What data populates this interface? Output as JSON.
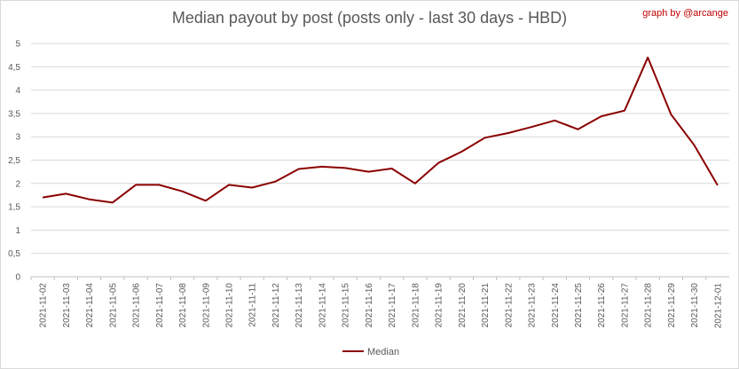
{
  "credit": "graph by @arcange",
  "chart_data": {
    "type": "line",
    "title": "Median payout by post (posts only - last 30 days - HBD)",
    "x": [
      "2021-11-02",
      "2021-11-03",
      "2021-11-04",
      "2021-11-05",
      "2021-11-06",
      "2021-11-07",
      "2021-11-08",
      "2021-11-09",
      "2021-11-10",
      "2021-11-11",
      "2021-11-12",
      "2021-11-13",
      "2021-11-14",
      "2021-11-15",
      "2021-11-16",
      "2021-11-17",
      "2021-11-18",
      "2021-11-19",
      "2021-11-20",
      "2021-11-21",
      "2021-11-22",
      "2021-11-23",
      "2021-11-24",
      "2021-11-25",
      "2021-11-26",
      "2021-11-27",
      "2021-11-28",
      "2021-11-29",
      "2021-11-30",
      "2021-12-01"
    ],
    "series": [
      {
        "name": "Median",
        "color": "#8b0000",
        "values": [
          1.7,
          1.78,
          1.66,
          1.59,
          1.97,
          1.97,
          1.83,
          1.63,
          1.97,
          1.91,
          2.04,
          2.31,
          2.36,
          2.33,
          2.25,
          2.32,
          2.0,
          2.44,
          2.68,
          2.98,
          3.08,
          3.21,
          3.35,
          3.16,
          3.44,
          3.56,
          4.7,
          3.48,
          2.82,
          1.96
        ]
      }
    ],
    "yticks": [
      "0",
      "0,5",
      "1",
      "1,5",
      "2",
      "2,5",
      "3",
      "3,5",
      "4",
      "4,5",
      "5"
    ],
    "ylim": [
      0,
      5
    ],
    "grid": true,
    "legend": "bottom"
  }
}
